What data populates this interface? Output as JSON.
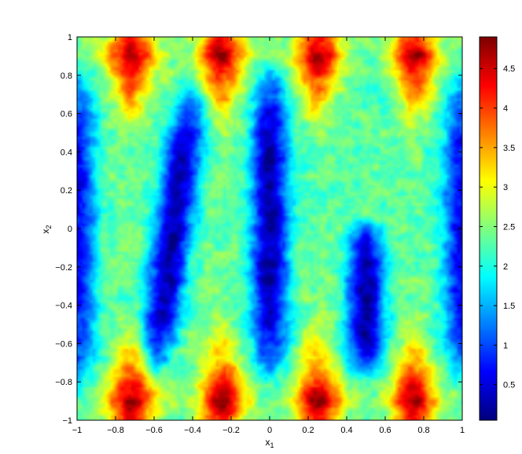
{
  "chart_data": {
    "type": "heatmap",
    "title": "",
    "xlabel": "x",
    "xlabel_sub": "1",
    "ylabel": "x",
    "ylabel_sub": "2",
    "xlim": [
      -1,
      1
    ],
    "ylim": [
      -1,
      1
    ],
    "grid": false,
    "colormap": "jet",
    "x_ticks": [
      -1,
      -0.8,
      -0.6,
      -0.4,
      -0.2,
      0,
      0.2,
      0.4,
      0.6,
      0.8,
      1
    ],
    "x_tick_labels": [
      "−1",
      "−0.8",
      "−0.6",
      "−0.4",
      "−0.2",
      "0",
      "0.2",
      "0.4",
      "0.6",
      "0.8",
      "1"
    ],
    "y_ticks": [
      -1,
      -0.8,
      -0.6,
      -0.4,
      -0.2,
      0,
      0.2,
      0.4,
      0.6,
      0.8,
      1
    ],
    "y_tick_labels": [
      "−1",
      "−0.8",
      "−0.6",
      "−0.4",
      "−0.2",
      "0",
      "0.2",
      "0.4",
      "0.6",
      "0.8",
      "1"
    ],
    "colorbar": {
      "range": [
        0.05,
        4.9
      ],
      "ticks": [
        0.5,
        1,
        1.5,
        2,
        2.5,
        3,
        3.5,
        4,
        4.5
      ],
      "tick_labels": [
        "0.5",
        "1",
        "1.5",
        "2",
        "2.5",
        "3",
        "3.5",
        "4",
        "4.5"
      ]
    },
    "features": {
      "peaks_x": [
        -0.72,
        -0.25,
        0.25,
        0.75
      ],
      "peaks_y": [
        -0.9,
        0.9
      ],
      "peak_value": 4.8,
      "troughs": [
        {
          "x_top": -0.4,
          "x_bottom": -0.6,
          "y_from": -0.75,
          "y_to": 0.75,
          "value": 0.2
        },
        {
          "x_top": 0.0,
          "x_bottom": 0.0,
          "y_from": -0.8,
          "y_to": 0.85,
          "value": 0.2
        },
        {
          "x_top": 0.5,
          "x_bottom": 0.5,
          "y_from": -0.75,
          "y_to": 0.02,
          "value": 0.2
        },
        {
          "x_top": -1.0,
          "x_bottom": -1.0,
          "y_from": -0.85,
          "y_to": 0.85,
          "value": 0.6
        },
        {
          "x_top": 1.0,
          "x_bottom": 1.0,
          "y_from": -0.8,
          "y_to": 0.8,
          "value": 0.6
        }
      ],
      "flat_region": {
        "x_from": 0.2,
        "x_to": 0.95,
        "y_from": 0.1,
        "y_to": 0.8,
        "value": 2.0
      },
      "edge_value": 2.4
    }
  }
}
